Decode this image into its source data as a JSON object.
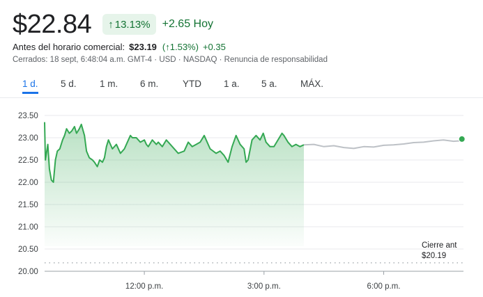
{
  "quote": {
    "price": "$22.84",
    "pct_change": "13.13%",
    "abs_change": "+2.65 Hoy"
  },
  "premarket": {
    "label": "Antes del horario comercial:",
    "price": "$23.19",
    "pct": "1.53%",
    "change": "+0.35"
  },
  "status": {
    "closed": "Cerrados: 18 sept, 6:48:04 a.m. GMT-4",
    "currency": "USD",
    "exchange": "NASDAQ",
    "disclaimer": "Renuncia de responsabilidad"
  },
  "tabs": [
    {
      "label": "1 d.",
      "active": true
    },
    {
      "label": "5 d.",
      "active": false
    },
    {
      "label": "1 m.",
      "active": false
    },
    {
      "label": "6 m.",
      "active": false
    },
    {
      "label": "YTD",
      "active": false
    },
    {
      "label": "1 a.",
      "active": false
    },
    {
      "label": "5 a.",
      "active": false
    },
    {
      "label": "MÁX.",
      "active": false
    }
  ],
  "chart_data": {
    "type": "line",
    "y_ticks": [
      "23.50",
      "23.00",
      "22.50",
      "22.00",
      "21.50",
      "21.00",
      "20.50",
      "20.00"
    ],
    "ylim": [
      20.0,
      23.5
    ],
    "x_ticks": [
      {
        "label": "12:00 p.m.",
        "hour": 12
      },
      {
        "label": "3:00 p.m.",
        "hour": 15
      },
      {
        "label": "6:00 p.m.",
        "hour": 18
      }
    ],
    "xlim_hours": [
      9.5,
      20.0
    ],
    "previous_close": 20.19,
    "previous_close_label": [
      "Cierre ant",
      "$20.19"
    ],
    "colors": {
      "regular": "#34a853",
      "fill": "#34a853",
      "extended": "#bdc1c6",
      "dot": "#34a853"
    },
    "series": [
      {
        "session": "regular",
        "x": [
          9.5,
          9.52,
          9.58,
          9.62,
          9.67,
          9.72,
          9.77,
          9.82,
          9.88,
          9.95,
          10.0,
          10.05,
          10.12,
          10.18,
          10.25,
          10.3,
          10.37,
          10.42,
          10.5,
          10.55,
          10.62,
          10.7,
          10.75,
          10.82,
          10.88,
          10.95,
          11.0,
          11.05,
          11.1,
          11.15,
          11.2,
          11.3,
          11.4,
          11.5,
          11.6,
          11.65,
          11.7,
          11.8,
          11.9,
          12.0,
          12.05,
          12.1,
          12.2,
          12.3,
          12.35,
          12.45,
          12.55,
          12.7,
          12.85,
          13.0,
          13.1,
          13.2,
          13.3,
          13.4,
          13.5,
          13.65,
          13.8,
          13.9,
          14.0,
          14.1,
          14.2,
          14.3,
          14.4,
          14.5,
          14.55,
          14.6,
          14.7,
          14.8,
          14.9,
          14.98,
          15.05,
          15.15,
          15.25,
          15.35,
          15.45,
          15.5,
          15.6,
          15.7,
          15.8,
          15.9,
          16.0
        ],
        "y": [
          23.35,
          22.5,
          22.85,
          22.3,
          22.05,
          22.0,
          22.5,
          22.7,
          22.75,
          22.95,
          23.05,
          23.2,
          23.1,
          23.15,
          23.25,
          23.1,
          23.2,
          23.3,
          23.05,
          22.7,
          22.55,
          22.5,
          22.45,
          22.35,
          22.5,
          22.45,
          22.55,
          22.8,
          22.95,
          22.85,
          22.75,
          22.85,
          22.65,
          22.75,
          22.95,
          23.05,
          23.0,
          23.0,
          22.9,
          22.95,
          22.85,
          22.8,
          22.95,
          22.85,
          22.9,
          22.8,
          22.95,
          22.8,
          22.65,
          22.7,
          22.9,
          22.8,
          22.85,
          22.9,
          23.05,
          22.75,
          22.65,
          22.7,
          22.6,
          22.45,
          22.8,
          23.05,
          22.85,
          22.75,
          22.45,
          22.5,
          22.95,
          23.05,
          22.95,
          23.1,
          22.9,
          22.8,
          22.8,
          22.95,
          23.1,
          23.05,
          22.9,
          22.8,
          22.85,
          22.8,
          22.84
        ]
      },
      {
        "session": "extended",
        "x": [
          16.0,
          16.25,
          16.5,
          16.75,
          17.0,
          17.25,
          17.5,
          17.75,
          18.0,
          18.25,
          18.5,
          18.75,
          19.0,
          19.25,
          19.5,
          19.75,
          19.9,
          19.96
        ],
        "y": [
          22.84,
          22.85,
          22.8,
          22.82,
          22.78,
          22.76,
          22.8,
          22.79,
          22.83,
          22.84,
          22.86,
          22.89,
          22.9,
          22.93,
          22.95,
          22.92,
          22.93,
          22.97
        ]
      }
    ]
  }
}
